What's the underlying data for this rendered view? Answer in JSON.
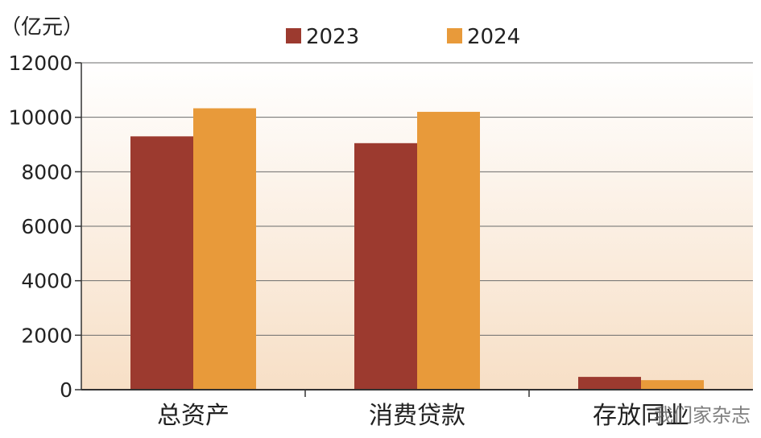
{
  "chart_data": {
    "type": "bar",
    "unit_label": "（亿元）",
    "categories": [
      "总资产",
      "消费贷款",
      "存放同业"
    ],
    "series": [
      {
        "name": "2023",
        "values": [
          9300,
          9050,
          470
        ]
      },
      {
        "name": "2024",
        "values": [
          10330,
          10200,
          350
        ]
      }
    ],
    "ylim": [
      0,
      12000
    ],
    "yticks": [
      "0",
      "2000",
      "4000",
      "6000",
      "8000",
      "10000",
      "12000"
    ],
    "ytick_values": [
      0,
      2000,
      4000,
      6000,
      8000,
      10000,
      12000
    ],
    "grid": true,
    "legend_position": "top-center",
    "colors": {
      "2023": "#9c3a2f",
      "2024": "#e89a3a",
      "background_top": "#ffffff",
      "background_bottom": "#f7dfc6",
      "gridline": "#6b6b6b",
      "axis": "#333333"
    }
  },
  "watermark": "我们家杂志"
}
